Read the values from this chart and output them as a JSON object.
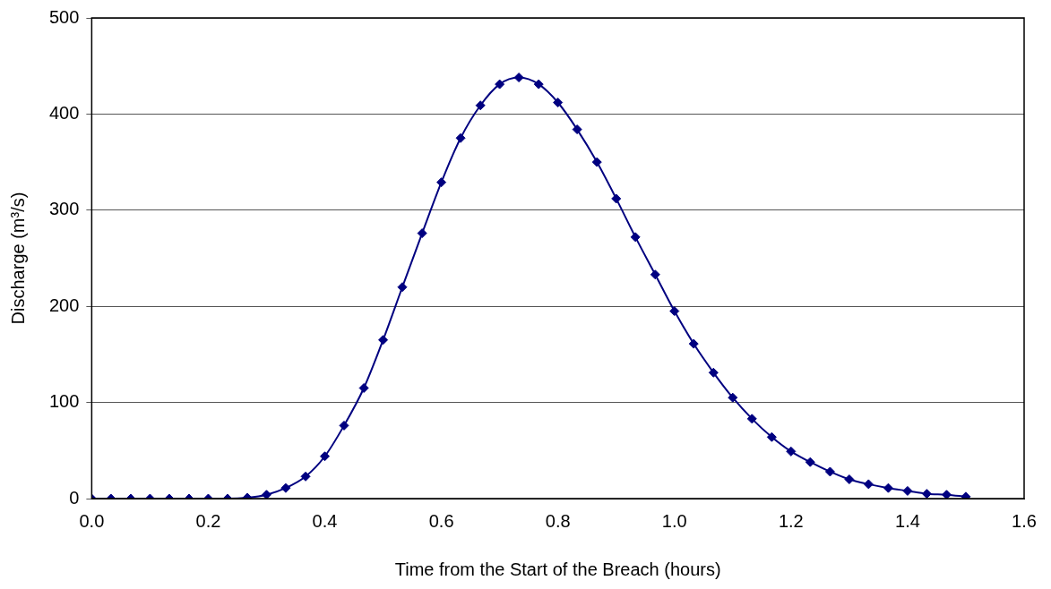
{
  "chart_data": {
    "type": "line",
    "xlabel": "Time from the Start of the Breach (hours)",
    "ylabel": "Discharge (m³/s)",
    "x": [
      0,
      0.033,
      0.067,
      0.1,
      0.133,
      0.167,
      0.2,
      0.233,
      0.267,
      0.3,
      0.333,
      0.367,
      0.4,
      0.433,
      0.467,
      0.5,
      0.533,
      0.567,
      0.6,
      0.633,
      0.667,
      0.7,
      0.733,
      0.767,
      0.8,
      0.833,
      0.867,
      0.9,
      0.933,
      0.967,
      1.0,
      1.033,
      1.067,
      1.1,
      1.133,
      1.167,
      1.2,
      1.233,
      1.267,
      1.3,
      1.333,
      1.367,
      1.4,
      1.433,
      1.467,
      1.5
    ],
    "series": [
      {
        "color": "#000080",
        "values": [
          0,
          0,
          0,
          0,
          0,
          0,
          0,
          0,
          1,
          4,
          11,
          23,
          44,
          76,
          115,
          165,
          220,
          276,
          329,
          375,
          409,
          431,
          438,
          431,
          412,
          384,
          350,
          312,
          272,
          233,
          195,
          161,
          131,
          105,
          83,
          64,
          49,
          38,
          28,
          20,
          15,
          11,
          8,
          5,
          4,
          2
        ]
      }
    ],
    "xlim": [
      0,
      1.6
    ],
    "xticks": [
      {
        "value": 0,
        "label": "0.0"
      },
      {
        "value": 0.2,
        "label": "0.2"
      },
      {
        "value": 0.4,
        "label": "0.4"
      },
      {
        "value": 0.6,
        "label": "0.6"
      },
      {
        "value": 0.8,
        "label": "0.8"
      },
      {
        "value": 1.0,
        "label": "1.0"
      },
      {
        "value": 1.2,
        "label": "1.2"
      },
      {
        "value": 1.4,
        "label": "1.4"
      },
      {
        "value": 1.6,
        "label": "1.6"
      }
    ],
    "ylim": [
      0,
      500
    ],
    "yticks": [
      0,
      100,
      200,
      300,
      400,
      500
    ],
    "grid": "y",
    "legend": false,
    "marker": "diamond",
    "line_style": "solid"
  }
}
